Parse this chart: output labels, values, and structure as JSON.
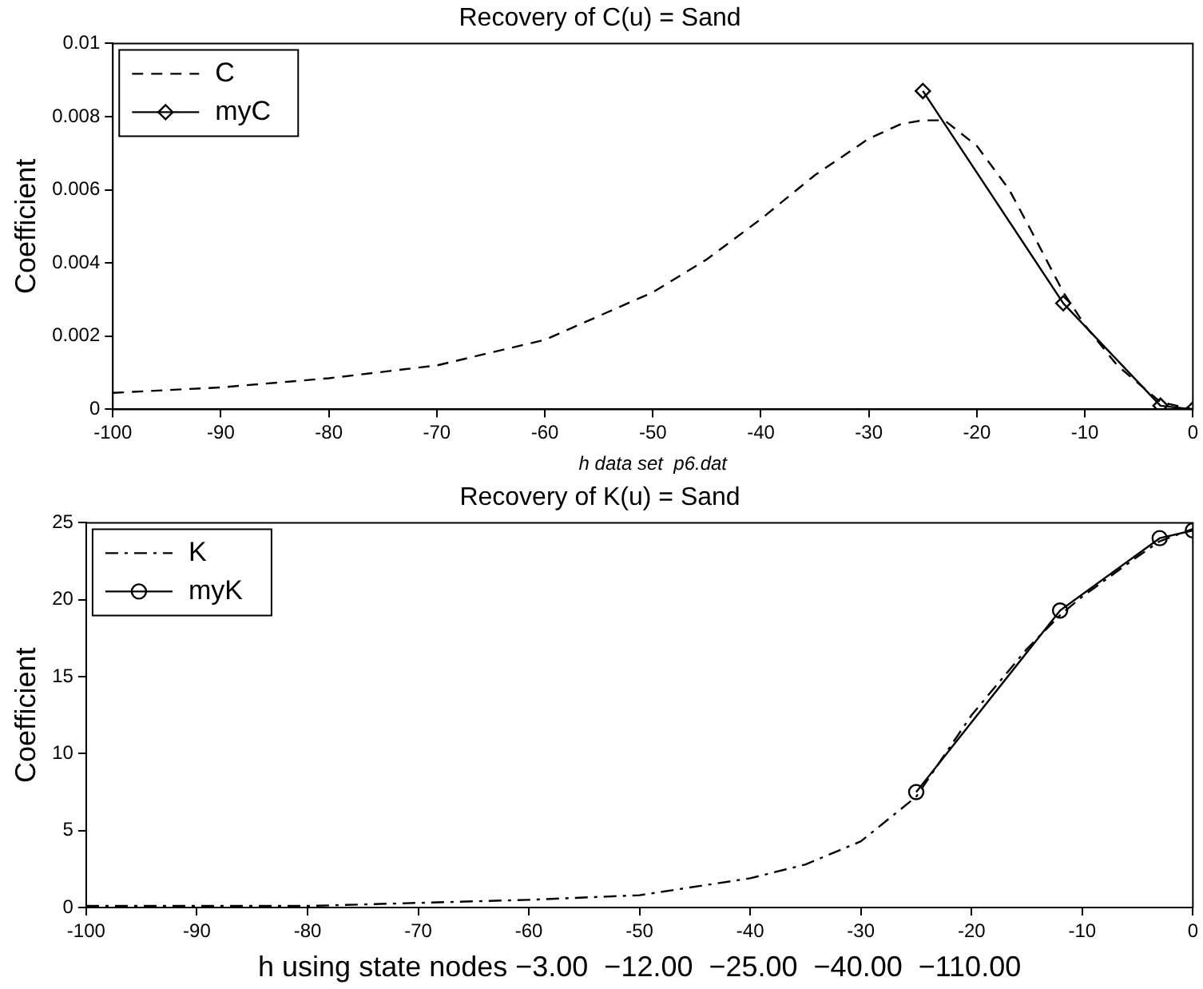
{
  "chart_data": [
    {
      "type": "line",
      "title": "Recovery of C(u) = Sand",
      "xlabel": "h data set  p6.dat",
      "ylabel": "Coefficient",
      "xlim": [
        -100,
        0
      ],
      "xticks": [
        -100,
        -90,
        -80,
        -70,
        -60,
        -50,
        -40,
        -30,
        -20,
        -10,
        0
      ],
      "ylim": [
        0,
        0.01
      ],
      "yticks": [
        0,
        0.002,
        0.004,
        0.006,
        0.008,
        0.01
      ],
      "grid": false,
      "legend": "top left",
      "series": [
        {
          "name": "C",
          "color": "#000000",
          "line_style": "dashed",
          "marker": "none",
          "x": [
            -100,
            -90,
            -80,
            -70,
            -60,
            -50,
            -45,
            -40,
            -35,
            -30,
            -27,
            -25,
            -23,
            -20,
            -17,
            -15,
            -12,
            -10,
            -7,
            -5,
            -3,
            0
          ],
          "values": [
            0.00045,
            0.0006,
            0.00085,
            0.0012,
            0.0019,
            0.0032,
            0.0041,
            0.0052,
            0.0064,
            0.0074,
            0.0078,
            0.0079,
            0.0079,
            0.0072,
            0.006,
            0.0049,
            0.0032,
            0.0023,
            0.0012,
            0.0007,
            0.0002,
            0
          ]
        },
        {
          "name": "myC",
          "color": "#000000",
          "line_style": "solid",
          "marker": "diamond",
          "x": [
            -25,
            -12,
            -3,
            0
          ],
          "values": [
            0.0087,
            0.0029,
            0.0001,
            0
          ]
        }
      ]
    },
    {
      "type": "line",
      "title": "Recovery of K(u) = Sand",
      "xlabel": "h using state nodes −3.00  −12.00  −25.00  −40.00  −110.00",
      "ylabel": "Coefficient",
      "xlim": [
        -100,
        0
      ],
      "xticks": [
        -100,
        -90,
        -80,
        -70,
        -60,
        -50,
        -40,
        -30,
        -20,
        -10,
        0
      ],
      "ylim": [
        0,
        25
      ],
      "yticks": [
        0,
        5,
        10,
        15,
        20,
        25
      ],
      "grid": false,
      "legend": "top left",
      "series": [
        {
          "name": "K",
          "color": "#000000",
          "line_style": "dashdot",
          "marker": "none",
          "x": [
            -100,
            -80,
            -70,
            -60,
            -50,
            -40,
            -35,
            -30,
            -25,
            -20,
            -15,
            -12,
            -10,
            -5,
            -3,
            0
          ],
          "values": [
            0.1,
            0.1,
            0.3,
            0.5,
            0.8,
            1.9,
            2.8,
            4.3,
            7.2,
            12.5,
            16.8,
            19,
            20.2,
            22.8,
            23.8,
            24.6
          ]
        },
        {
          "name": "myK",
          "color": "#000000",
          "line_style": "solid",
          "marker": "circle",
          "x": [
            -25,
            -12,
            -3,
            0
          ],
          "values": [
            7.5,
            19.3,
            24,
            24.5
          ]
        }
      ]
    }
  ]
}
